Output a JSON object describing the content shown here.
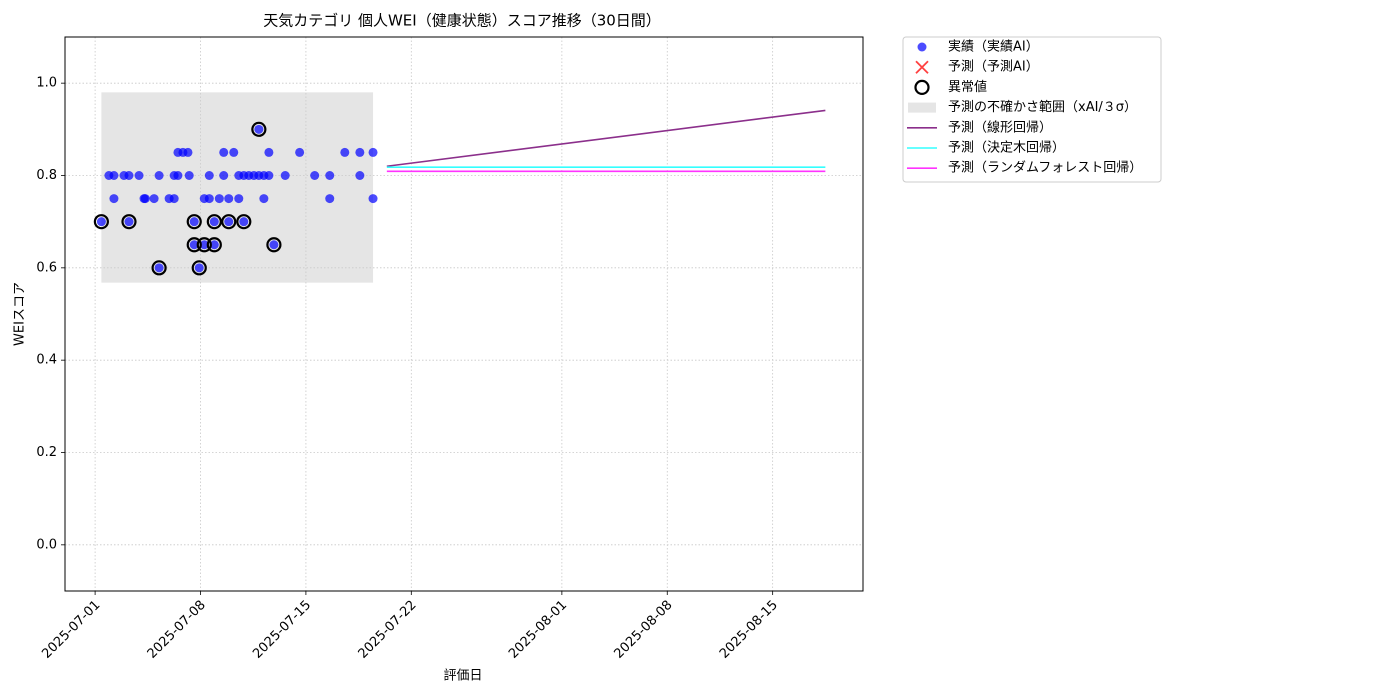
{
  "chart_data": {
    "type": "scatter",
    "title": "天気カテゴリ 個人WEI（健康状態）スコア推移（30日間）",
    "x_label": "評価日",
    "y_label": "WEIスコア",
    "xlim": [
      "2025-06-29",
      "2025-08-21"
    ],
    "xticks": [
      "2025-07-01",
      "2025-07-08",
      "2025-07-15",
      "2025-07-22",
      "2025-08-01",
      "2025-08-08",
      "2025-08-15"
    ],
    "ylim": [
      -0.1,
      1.1
    ],
    "yticks": [
      {
        "value": 0,
        "label": "0.0"
      },
      0.2,
      0.4,
      0.6,
      0.8,
      {
        "value": 1,
        "label": "1.0"
      }
    ],
    "grid": true,
    "legend": "outside upper right",
    "series": [
      {
        "name": "実績（実績AI）",
        "type": "scatter",
        "marker": "dot",
        "color": "#0000ff",
        "x": [
          "2025-07-01T10:00",
          "2025-07-01T22:00",
          "2025-07-02T06:00",
          "2025-07-02T06:00",
          "2025-07-02T22:00",
          "2025-07-03T06:00",
          "2025-07-03T06:00",
          "2025-07-03T22:00",
          "2025-07-04T06:00",
          "2025-07-04T08:00",
          "2025-07-04T22:00",
          "2025-07-05T06:00",
          "2025-07-05T06:00",
          "2025-07-05T22:00",
          "2025-07-06T06:00",
          "2025-07-06T06:00",
          "2025-07-06T12:00",
          "2025-07-06T12:00",
          "2025-07-06T20:00",
          "2025-07-07T04:00",
          "2025-07-07T06:00",
          "2025-07-07T14:00",
          "2025-07-07T14:00",
          "2025-07-07T22:00",
          "2025-07-08T06:00",
          "2025-07-08T06:00",
          "2025-07-08T14:00",
          "2025-07-08T14:00",
          "2025-07-08T22:00",
          "2025-07-08T22:00",
          "2025-07-09T06:00",
          "2025-07-09T13:00",
          "2025-07-09T13:00",
          "2025-07-09T21:00",
          "2025-07-09T21:00",
          "2025-07-10T05:00",
          "2025-07-10T13:00",
          "2025-07-10T13:00",
          "2025-07-10T21:00",
          "2025-07-10T21:00",
          "2025-07-11T05:00",
          "2025-07-11T13:00",
          "2025-07-11T21:00",
          "2025-07-11T21:00",
          "2025-07-12T05:00",
          "2025-07-12T05:00",
          "2025-07-12T13:00",
          "2025-07-12T13:00",
          "2025-07-12T21:00",
          "2025-07-13T15:00",
          "2025-07-14T14:00",
          "2025-07-15T14:00",
          "2025-07-16T14:00",
          "2025-07-16T14:00",
          "2025-07-17T14:00",
          "2025-07-18T14:00",
          "2025-07-18T14:00",
          "2025-07-19T11:00",
          "2025-07-19T11:00"
        ],
        "values": [
          0.7,
          0.8,
          0.8,
          0.75,
          0.8,
          0.8,
          0.7,
          0.8,
          0.75,
          0.75,
          0.75,
          0.8,
          0.6,
          0.75,
          0.8,
          0.75,
          0.85,
          0.8,
          0.85,
          0.85,
          0.8,
          0.7,
          0.65,
          0.6,
          0.75,
          0.65,
          0.8,
          0.75,
          0.7,
          0.65,
          0.75,
          0.85,
          0.8,
          0.75,
          0.7,
          0.85,
          0.8,
          0.75,
          0.8,
          0.7,
          0.8,
          0.8,
          0.8,
          0.9,
          0.8,
          0.75,
          0.8,
          0.85,
          0.65,
          0.8,
          0.85,
          0.8,
          0.8,
          0.75,
          0.85,
          0.85,
          0.8,
          0.85,
          0.75
        ]
      },
      {
        "name": "予測（予測AI）",
        "type": "scatter",
        "marker": "x",
        "color": "#ff0000",
        "x": [],
        "values": []
      },
      {
        "name": "異常値",
        "type": "scatter",
        "marker": "ring",
        "color": "#000000",
        "x": [
          "2025-07-01T10:00",
          "2025-07-03T06:00",
          "2025-07-05T06:00",
          "2025-07-07T14:00",
          "2025-07-07T14:00",
          "2025-07-07T22:00",
          "2025-07-08T06:00",
          "2025-07-08T22:00",
          "2025-07-08T22:00",
          "2025-07-09T21:00",
          "2025-07-10T21:00",
          "2025-07-11T21:00",
          "2025-07-12T21:00"
        ],
        "values": [
          0.7,
          0.7,
          0.6,
          0.7,
          0.65,
          0.6,
          0.65,
          0.7,
          0.65,
          0.7,
          0.7,
          0.9,
          0.65
        ]
      },
      {
        "name": "予測の不確かさ範囲（xAI/３σ）",
        "type": "band",
        "color": "#cccccc",
        "x": [
          "2025-07-01T10:00",
          "2025-07-19T11:00"
        ],
        "lower": [
          0.568,
          0.568
        ],
        "upper": [
          0.98,
          0.98
        ]
      },
      {
        "name": "予測（線形回帰）",
        "type": "line",
        "color": "#8b2f8b",
        "x": [
          "2025-07-20T09:00",
          "2025-08-18T12:00"
        ],
        "values": [
          0.82,
          0.941
        ]
      },
      {
        "name": "予測（決定木回帰）",
        "type": "line",
        "color": "#33ffff",
        "x": [
          "2025-07-20T09:00",
          "2025-08-18T12:00"
        ],
        "values": [
          0.818,
          0.818
        ]
      },
      {
        "name": "予測（ランダムフォレスト回帰）",
        "type": "line",
        "color": "#ff33ff",
        "x": [
          "2025-07-20T09:00",
          "2025-08-18T12:00"
        ],
        "values": [
          0.809,
          0.809
        ]
      }
    ]
  }
}
